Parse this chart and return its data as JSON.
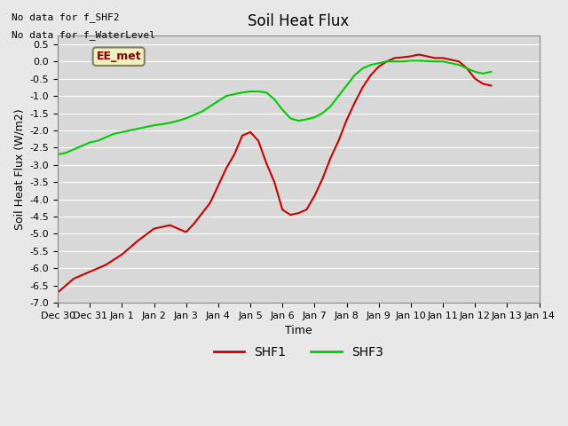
{
  "title": "Soil Heat Flux",
  "xlabel": "Time",
  "ylabel": "Soil Heat Flux (W/m2)",
  "ylim": [
    -7.0,
    0.75
  ],
  "yticks": [
    0.5,
    0.0,
    -0.5,
    -1.0,
    -1.5,
    -2.0,
    -2.5,
    -3.0,
    -3.5,
    -4.0,
    -4.5,
    -5.0,
    -5.5,
    -6.0,
    -6.5,
    -7.0
  ],
  "background_color": "#e8e8e8",
  "plot_bg_color": "#d8d8d8",
  "no_data_text1": "No data for f_SHF2",
  "no_data_text2": "No data for f_WaterLevel",
  "ee_met_label": "EE_met",
  "ee_met_bg": "#f0f0c0",
  "ee_met_border": "#808060",
  "legend_entries": [
    "SHF1",
    "SHF3"
  ],
  "line_colors": [
    "#cc0000",
    "#00cc00"
  ],
  "x_tick_labels": [
    "Dec 30",
    "Dec 31",
    "Jan 1",
    "Jan 2",
    "Jan 3",
    "Jan 4",
    "Jan 5",
    "Jan 6",
    "Jan 7",
    "Jan 8",
    "Jan 9",
    "Jan 10",
    "Jan 11",
    "Jan 12",
    "Jan 13",
    "Jan 14"
  ],
  "xlim": [
    0,
    13.5
  ],
  "shf1_x": [
    0,
    0.5,
    1,
    1.5,
    2,
    2.5,
    3,
    3.25,
    3.5,
    3.75,
    4,
    4.25,
    4.5,
    4.75,
    5,
    5.25,
    5.5,
    5.75,
    6,
    6.25,
    6.5,
    6.75,
    7,
    7.25,
    7.5,
    7.75,
    8,
    8.25,
    8.5,
    8.75,
    9,
    9.25,
    9.5,
    9.75,
    10,
    10.25,
    10.5,
    10.75,
    11,
    11.25,
    11.5,
    11.75,
    12,
    12.25,
    12.5,
    12.75,
    13,
    13.25,
    13.5
  ],
  "shf1_y": [
    -6.7,
    -6.3,
    -6.1,
    -5.9,
    -5.6,
    -5.2,
    -4.85,
    -4.8,
    -4.75,
    -4.85,
    -4.95,
    -4.7,
    -4.4,
    -4.1,
    -3.6,
    -3.1,
    -2.7,
    -2.15,
    -2.05,
    -2.3,
    -2.95,
    -3.5,
    -4.3,
    -4.45,
    -4.4,
    -4.3,
    -3.9,
    -3.4,
    -2.8,
    -2.3,
    -1.7,
    -1.2,
    -0.75,
    -0.4,
    -0.15,
    0.0,
    0.1,
    0.12,
    0.15,
    0.2,
    0.15,
    0.1,
    0.1,
    0.05,
    0.0,
    -0.2,
    -0.5,
    -0.65,
    -0.7
  ],
  "shf3_x": [
    0,
    0.25,
    0.5,
    0.75,
    1,
    1.25,
    1.5,
    1.75,
    2,
    2.25,
    2.5,
    2.75,
    3,
    3.25,
    3.5,
    3.75,
    4,
    4.25,
    4.5,
    4.75,
    5,
    5.25,
    5.5,
    5.75,
    6,
    6.25,
    6.5,
    6.75,
    7,
    7.25,
    7.5,
    7.75,
    8,
    8.25,
    8.5,
    8.75,
    9,
    9.25,
    9.5,
    9.75,
    10,
    10.25,
    10.5,
    10.75,
    11,
    11.25,
    11.5,
    11.75,
    12,
    12.25,
    12.5,
    12.75,
    13,
    13.25,
    13.5
  ],
  "shf3_y": [
    -2.7,
    -2.65,
    -2.55,
    -2.45,
    -2.35,
    -2.3,
    -2.2,
    -2.1,
    -2.05,
    -2.0,
    -1.95,
    -1.9,
    -1.85,
    -1.82,
    -1.78,
    -1.72,
    -1.65,
    -1.55,
    -1.45,
    -1.3,
    -1.15,
    -1.0,
    -0.95,
    -0.9,
    -0.87,
    -0.87,
    -0.9,
    -1.1,
    -1.4,
    -1.65,
    -1.72,
    -1.68,
    -1.62,
    -1.5,
    -1.3,
    -1.0,
    -0.7,
    -0.4,
    -0.2,
    -0.1,
    -0.05,
    0.0,
    0.0,
    0.0,
    0.02,
    0.02,
    0.01,
    0.0,
    0.0,
    -0.05,
    -0.1,
    -0.2,
    -0.3,
    -0.35,
    -0.3
  ]
}
